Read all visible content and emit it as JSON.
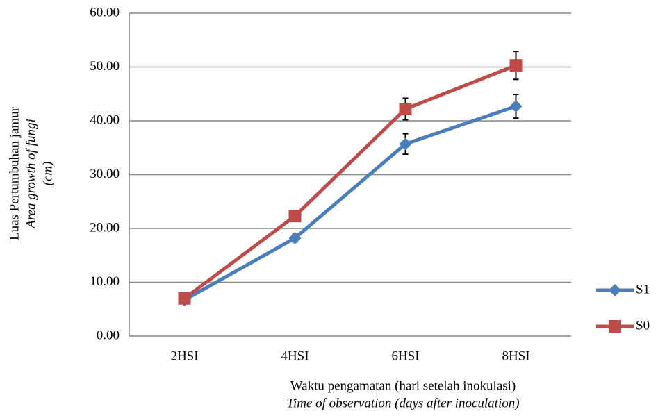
{
  "chart_data": {
    "type": "line",
    "y_label": [
      "Luas Pertumbuhan jamur",
      "Area growth of fungi",
      "(cm)"
    ],
    "x_label": [
      "Waktu pengamatan (hari setelah inokulasi)",
      "Time of observation (days after inoculation)"
    ],
    "categories": [
      "2HSI",
      "4HSI",
      "6HSI",
      "8HSI"
    ],
    "series": [
      {
        "name": "S1",
        "color": "#4a7ebb",
        "marker": "diamond",
        "values": [
          6.7,
          18.2,
          35.7,
          42.7
        ],
        "errors": [
          0.3,
          0.7,
          1.9,
          2.2
        ]
      },
      {
        "name": "S0",
        "color": "#be4b48",
        "marker": "square",
        "values": [
          7.0,
          22.3,
          42.2,
          50.3
        ],
        "errors": [
          0.3,
          0.6,
          2.0,
          2.6
        ]
      }
    ],
    "ylim": [
      0,
      60
    ],
    "yticks": [
      {
        "value": 0,
        "label": "0.00"
      },
      {
        "value": 10,
        "label": "10.00"
      },
      {
        "value": 20,
        "label": "20.00"
      },
      {
        "value": 30,
        "label": "30.00"
      },
      {
        "value": 40,
        "label": "40.00"
      },
      {
        "value": 50,
        "label": "50.00"
      },
      {
        "value": 60,
        "label": "60.00"
      }
    ],
    "grid": true,
    "legend": "right"
  }
}
